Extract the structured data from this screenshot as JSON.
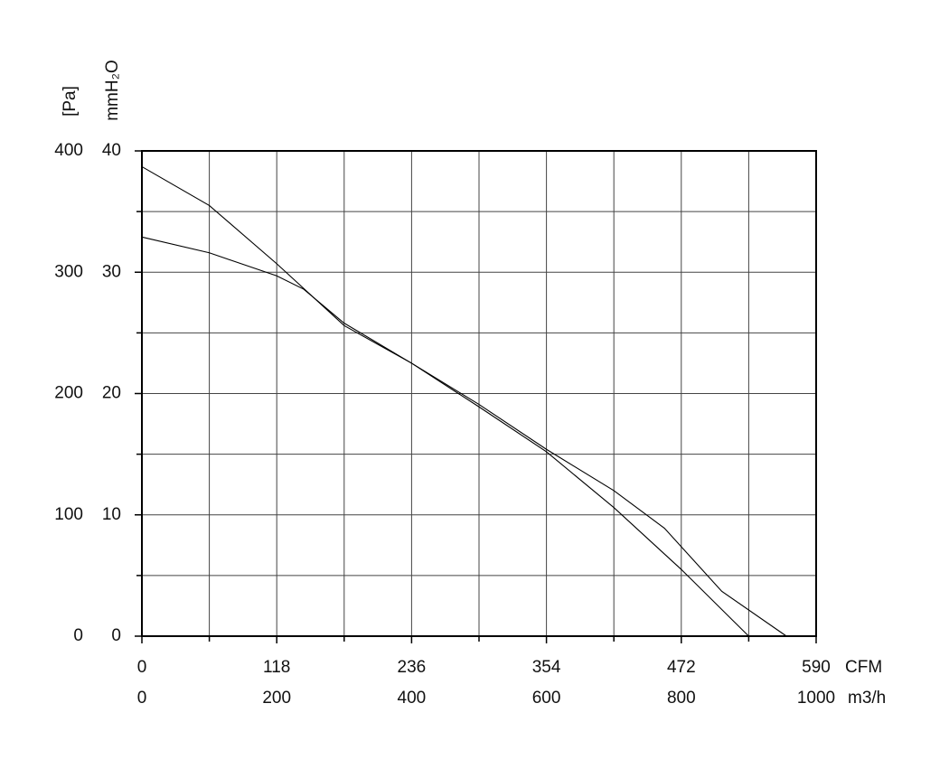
{
  "chart_data": {
    "type": "line",
    "xlabel": "m3/h",
    "x2label": "CFM",
    "ylabel": "[Pa]",
    "y2label": "mmH₂O",
    "xlim": [
      0,
      1000
    ],
    "xticks": [
      0,
      200,
      400,
      600,
      800,
      1000
    ],
    "xminor": [
      100,
      300,
      500,
      700,
      900
    ],
    "x2lim": [
      0,
      590
    ],
    "x2ticks": [
      0,
      118,
      236,
      354,
      472,
      590
    ],
    "ylim": [
      0,
      400
    ],
    "yticks": [
      0,
      100,
      200,
      300,
      400
    ],
    "yminor": [
      50,
      150,
      250,
      350
    ],
    "y2lim": [
      0,
      40
    ],
    "y2ticks": [
      0,
      10,
      20,
      30,
      40
    ],
    "grid": true,
    "series": [
      {
        "color": "#000000",
        "x": [
          0,
          100,
          200,
          300,
          400,
          500,
          600,
          700,
          800,
          900
        ],
        "values": [
          387,
          355,
          307,
          256,
          225,
          189,
          152,
          106,
          55,
          0
        ]
      },
      {
        "color": "#000000",
        "x": [
          0,
          100,
          200,
          240,
          300,
          400,
          500,
          600,
          700,
          775,
          860,
          956
        ],
        "values": [
          329,
          316,
          297,
          286,
          258,
          225,
          191,
          154,
          120,
          89,
          37,
          0
        ]
      }
    ]
  }
}
